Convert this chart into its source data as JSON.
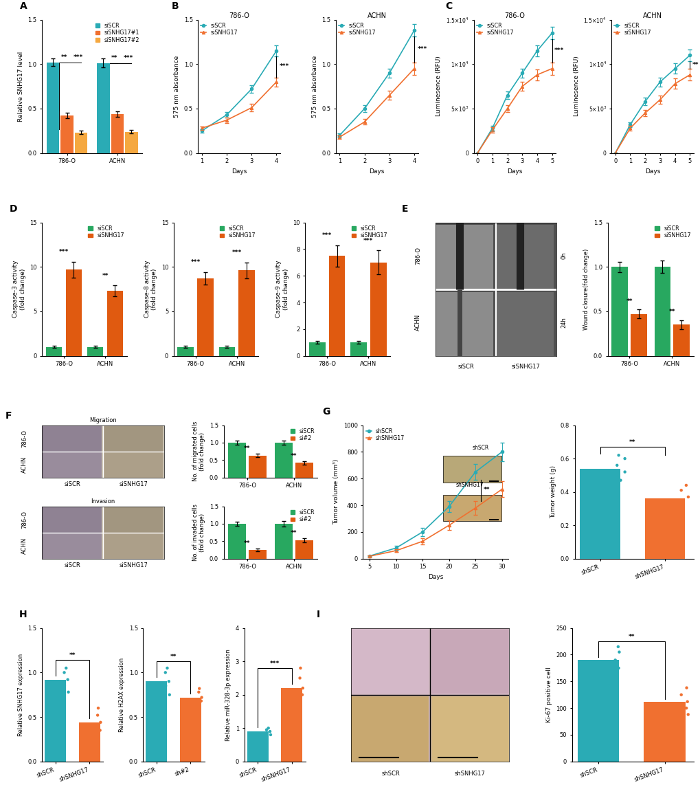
{
  "colors": {
    "teal": "#2AABB5",
    "orange": "#F07030",
    "light_orange": "#F5A840",
    "green": "#28A860",
    "dark_orange": "#E05A10"
  },
  "panel_A": {
    "values": [
      1.02,
      0.42,
      0.23,
      1.01,
      0.44,
      0.24
    ],
    "errors": [
      0.04,
      0.03,
      0.02,
      0.05,
      0.03,
      0.02
    ],
    "ylabel": "Relative SNHG17 level",
    "ylim": [
      0.0,
      1.5
    ],
    "yticks": [
      0.0,
      0.5,
      1.0,
      1.5
    ]
  },
  "panel_B_786O": {
    "title": "786-O",
    "days": [
      1,
      2,
      3,
      4
    ],
    "siSCR": [
      0.25,
      0.43,
      0.72,
      1.15
    ],
    "siSNHG17": [
      0.28,
      0.37,
      0.51,
      0.8
    ],
    "siSCR_err": [
      0.02,
      0.03,
      0.04,
      0.06
    ],
    "siSNHG17_err": [
      0.02,
      0.03,
      0.04,
      0.05
    ],
    "ylabel": "575 nm absorbance",
    "sig": "***"
  },
  "panel_B_ACHN": {
    "title": "ACHN",
    "days": [
      1,
      2,
      3,
      4
    ],
    "siSCR": [
      0.2,
      0.5,
      0.9,
      1.38
    ],
    "siSNHG17": [
      0.18,
      0.35,
      0.65,
      0.95
    ],
    "siSCR_err": [
      0.02,
      0.04,
      0.05,
      0.07
    ],
    "siSNHG17_err": [
      0.02,
      0.03,
      0.05,
      0.07
    ],
    "ylabel": "575 nm absorbance",
    "sig": "***"
  },
  "panel_C_786O": {
    "title": "786-O",
    "days": [
      0,
      1,
      2,
      3,
      4,
      5
    ],
    "siSCR": [
      0,
      2800,
      6500,
      9000,
      11500,
      13500
    ],
    "siSNHG17": [
      0,
      2600,
      5000,
      7500,
      8800,
      9500
    ],
    "siSCR_err": [
      0,
      280,
      400,
      500,
      600,
      700
    ],
    "siSNHG17_err": [
      0,
      280,
      400,
      500,
      600,
      700
    ],
    "ylabel": "Luminesence (RFU)",
    "sig": "***"
  },
  "panel_C_ACHN": {
    "title": "ACHN",
    "days": [
      0,
      1,
      2,
      3,
      4,
      5
    ],
    "siSCR": [
      0,
      3200,
      5800,
      8000,
      9500,
      11000
    ],
    "siSNHG17": [
      0,
      2800,
      4500,
      6000,
      7800,
      8800
    ],
    "siSCR_err": [
      0,
      280,
      400,
      500,
      580,
      680
    ],
    "siSNHG17_err": [
      0,
      280,
      380,
      480,
      560,
      660
    ],
    "ylabel": "Luminesence (RFU)",
    "sig": "**"
  },
  "panel_D_casp3": {
    "ylabel": "Caspase-3 activity\n(fold change)",
    "ylim": [
      0,
      15
    ],
    "yticks": [
      0,
      5,
      10,
      15
    ],
    "786O_siSCR": 1.0,
    "786O_siSNHG17": 9.7,
    "ACHN_siSCR": 1.0,
    "ACHN_siSNHG17": 7.3,
    "786O_siSCR_err": 0.1,
    "786O_siSNHG17_err": 0.9,
    "ACHN_siSCR_err": 0.1,
    "ACHN_siSNHG17_err": 0.6,
    "sig_786O": "***",
    "sig_ACHN": "**"
  },
  "panel_D_casp8": {
    "ylabel": "Caspase-8 activity\n(fold change)",
    "ylim": [
      0,
      15
    ],
    "yticks": [
      0,
      5,
      10,
      15
    ],
    "786O_siSCR": 1.0,
    "786O_siSNHG17": 8.7,
    "ACHN_siSCR": 1.0,
    "ACHN_siSNHG17": 9.6,
    "786O_siSCR_err": 0.1,
    "786O_siSNHG17_err": 0.7,
    "ACHN_siSCR_err": 0.1,
    "ACHN_siSNHG17_err": 0.9,
    "sig_786O": "***",
    "sig_ACHN": "***"
  },
  "panel_D_casp9": {
    "ylabel": "Caspase-9 activity\n(fold change)",
    "ylim": [
      0,
      10
    ],
    "yticks": [
      0,
      2,
      4,
      6,
      8,
      10
    ],
    "786O_siSCR": 1.0,
    "786O_siSNHG17": 7.5,
    "ACHN_siSCR": 1.0,
    "ACHN_siSNHG17": 7.0,
    "786O_siSCR_err": 0.1,
    "786O_siSNHG17_err": 0.8,
    "ACHN_siSCR_err": 0.1,
    "ACHN_siSNHG17_err": 0.9,
    "sig_786O": "***",
    "sig_ACHN": "***"
  },
  "panel_E_bar": {
    "ylabel": "Wound closure(fold change)",
    "ylim": [
      0,
      1.5
    ],
    "yticks": [
      0.0,
      0.5,
      1.0,
      1.5
    ],
    "786O_siSCR": 1.0,
    "786O_siSNHG17": 0.47,
    "ACHN_siSCR": 1.0,
    "ACHN_siSNHG17": 0.35,
    "786O_siSCR_err": 0.06,
    "786O_siSNHG17_err": 0.05,
    "ACHN_siSCR_err": 0.07,
    "ACHN_siSNHG17_err": 0.05,
    "sig_786O": "**",
    "sig_ACHN": "**"
  },
  "panel_F_migration": {
    "ylabel": "No. of migrated cells\n(fold change)",
    "ylim": [
      0,
      1.5
    ],
    "yticks": [
      0.0,
      0.5,
      1.0,
      1.5
    ],
    "786O_siSCR": 1.0,
    "786O_siSNHG17": 0.63,
    "ACHN_siSCR": 1.0,
    "ACHN_siSNHG17": 0.42,
    "786O_siSCR_err": 0.06,
    "786O_siSNHG17_err": 0.05,
    "ACHN_siSCR_err": 0.06,
    "ACHN_siSNHG17_err": 0.05,
    "sig_786O": "**",
    "sig_ACHN": "**"
  },
  "panel_F_invasion": {
    "ylabel": "No. of invaded cells\n(fold change)",
    "ylim": [
      0,
      1.5
    ],
    "yticks": [
      0.0,
      0.5,
      1.0,
      1.5
    ],
    "786O_siSCR": 1.0,
    "786O_siSNHG17": 0.25,
    "ACHN_siSCR": 1.0,
    "ACHN_siSNHG17": 0.52,
    "786O_siSCR_err": 0.05,
    "786O_siSNHG17_err": 0.04,
    "ACHN_siSCR_err": 0.08,
    "ACHN_siSNHG17_err": 0.06,
    "sig_786O": "**",
    "sig_ACHN": "**"
  },
  "panel_G_line": {
    "days": [
      5,
      10,
      15,
      20,
      25,
      30
    ],
    "shSCR": [
      20,
      80,
      200,
      390,
      650,
      800
    ],
    "shSNHG17": [
      18,
      60,
      130,
      250,
      380,
      520
    ],
    "shSCR_err": [
      5,
      15,
      30,
      40,
      60,
      70
    ],
    "shSNHG17_err": [
      5,
      12,
      25,
      35,
      50,
      60
    ],
    "ylabel": "Tumor volume (mm³)",
    "ylim": [
      0,
      1000
    ],
    "yticks": [
      0,
      200,
      400,
      600,
      800,
      1000
    ],
    "xlabel": "Days",
    "sig": "**"
  },
  "panel_G_bar": {
    "ylabel": "Tumor weight (g)",
    "ylim": [
      0.0,
      0.8
    ],
    "yticks": [
      0.0,
      0.2,
      0.4,
      0.6,
      0.8
    ],
    "shSCR_mean": 0.54,
    "shSNHG17_mean": 0.36,
    "shSCR_points": [
      0.47,
      0.52,
      0.56,
      0.6,
      0.62
    ],
    "shSNHG17_points": [
      0.28,
      0.32,
      0.37,
      0.41,
      0.44
    ],
    "sig": "**"
  },
  "panel_H_SNHG17": {
    "ylabel": "Relative SNHG17 expression",
    "ylim": [
      0.0,
      1.5
    ],
    "yticks": [
      0.0,
      0.5,
      1.0,
      1.5
    ],
    "shSCR_mean": 0.92,
    "shSNHG17_mean": 0.44,
    "shSCR_points": [
      0.78,
      0.85,
      0.92,
      1.0,
      1.05
    ],
    "shSNHG17_points": [
      0.25,
      0.35,
      0.44,
      0.52,
      0.6
    ],
    "sig": "**"
  },
  "panel_H_H2AX": {
    "ylabel": "Relative H2AX expression",
    "ylim": [
      0.0,
      1.5
    ],
    "yticks": [
      0.0,
      0.5,
      1.0,
      1.5
    ],
    "shSCR_mean": 0.9,
    "shSNHG17_mean": 0.72,
    "shSCR_points": [
      0.75,
      0.85,
      0.9,
      1.0,
      1.05
    ],
    "shSNHG17_points": [
      0.6,
      0.68,
      0.72,
      0.78,
      0.82
    ],
    "sig": "**"
  },
  "panel_H_miR": {
    "ylabel": "Relative miR-328-3p expression",
    "ylim": [
      0.0,
      4.0
    ],
    "yticks": [
      0,
      1,
      2,
      3,
      4
    ],
    "shSCR_mean": 0.9,
    "shSNHG17_mean": 2.2,
    "shSCR_points": [
      0.8,
      0.85,
      0.9,
      0.95,
      1.0
    ],
    "shSNHG17_points": [
      1.8,
      2.0,
      2.2,
      2.5,
      2.8
    ],
    "sig": "***"
  },
  "panel_I_bar": {
    "ylabel": "Ki-67 positive cell",
    "ylim": [
      0,
      250
    ],
    "yticks": [
      0,
      50,
      100,
      150,
      200,
      250
    ],
    "shSCR_mean": 190,
    "shSNHG17_mean": 112,
    "shSCR_points": [
      165,
      175,
      190,
      205,
      215
    ],
    "shSNHG17_points": [
      88,
      100,
      112,
      125,
      138
    ],
    "sig": "**"
  }
}
